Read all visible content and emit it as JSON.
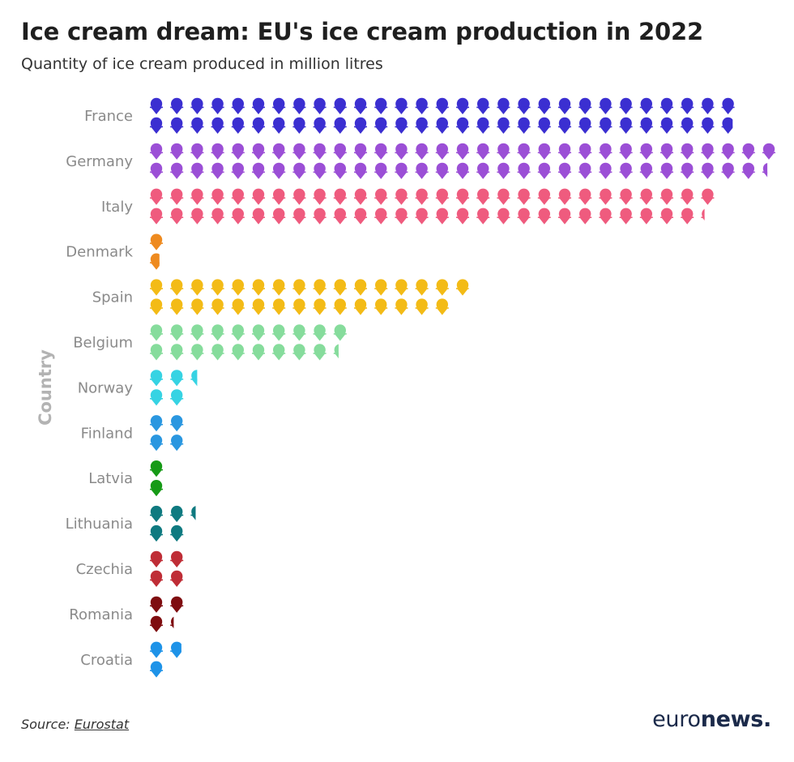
{
  "title": "Ice cream dream: EU's ice cream production in 2022",
  "subtitle": "Quantity of ice cream produced in million litres",
  "footer": {
    "source_prefix": "Source:",
    "source_name": "Eurostat"
  },
  "logo": {
    "part1": "euro",
    "part2": "news."
  },
  "chart_data": {
    "type": "pictogram-bar",
    "ylabel": "Country",
    "xlabel": "",
    "icon": "ice-cream-cone-icon",
    "units_per_icon": 10,
    "categories": [
      "France",
      "Germany",
      "Italy",
      "Denmark",
      "Spain",
      "Belgium",
      "Norway",
      "Finland",
      "Latvia",
      "Lithuania",
      "Czechia",
      "Romania",
      "Croatia"
    ],
    "values": [
      578,
      614,
      553,
      17,
      309,
      194,
      45,
      40,
      20,
      44,
      39,
      33,
      28
    ],
    "colors": [
      "#3b2fd1",
      "#9b4fd6",
      "#ef5b7e",
      "#ee8a1f",
      "#f3bb16",
      "#86dc9c",
      "#36d3e3",
      "#2a97e0",
      "#169a16",
      "#0f7a80",
      "#bf2d36",
      "#7f0d10",
      "#1e93e8"
    ]
  }
}
